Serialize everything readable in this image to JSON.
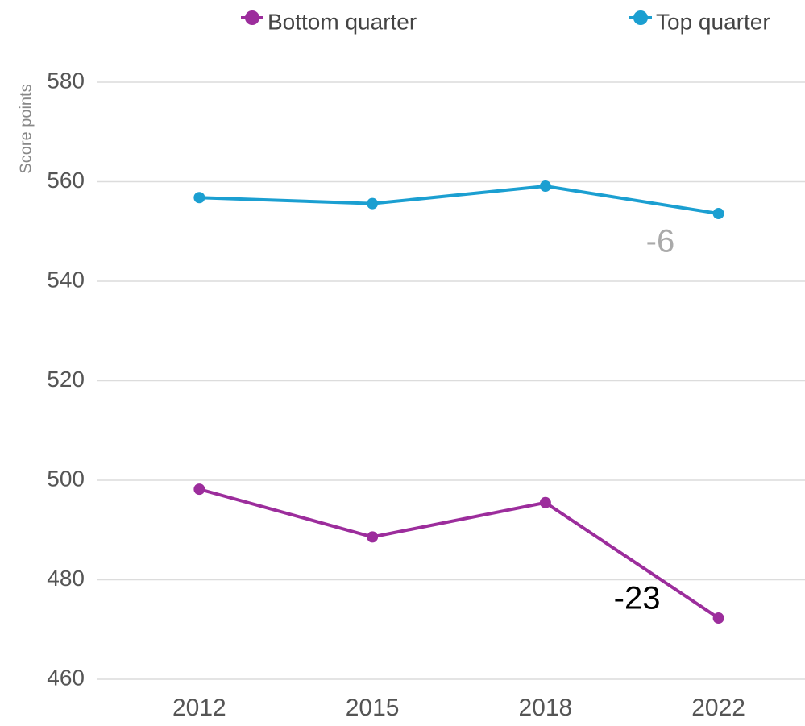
{
  "chart_data": {
    "type": "line",
    "y_label": "Score points",
    "categories": [
      "2012",
      "2015",
      "2018",
      "2022"
    ],
    "series": [
      {
        "name": "Bottom quarter",
        "color": "#9c2d9c",
        "values": [
          498.2,
          488.6,
          495.5,
          472.3
        ]
      },
      {
        "name": "Top quarter",
        "color": "#1b9fd1",
        "values": [
          556.8,
          555.6,
          559.1,
          553.6
        ]
      }
    ],
    "annotations": [
      "-23",
      "-6"
    ],
    "ylim": [
      460,
      580
    ],
    "yticks": [
      460,
      480,
      500,
      520,
      540,
      560,
      580
    ],
    "grid": true
  }
}
